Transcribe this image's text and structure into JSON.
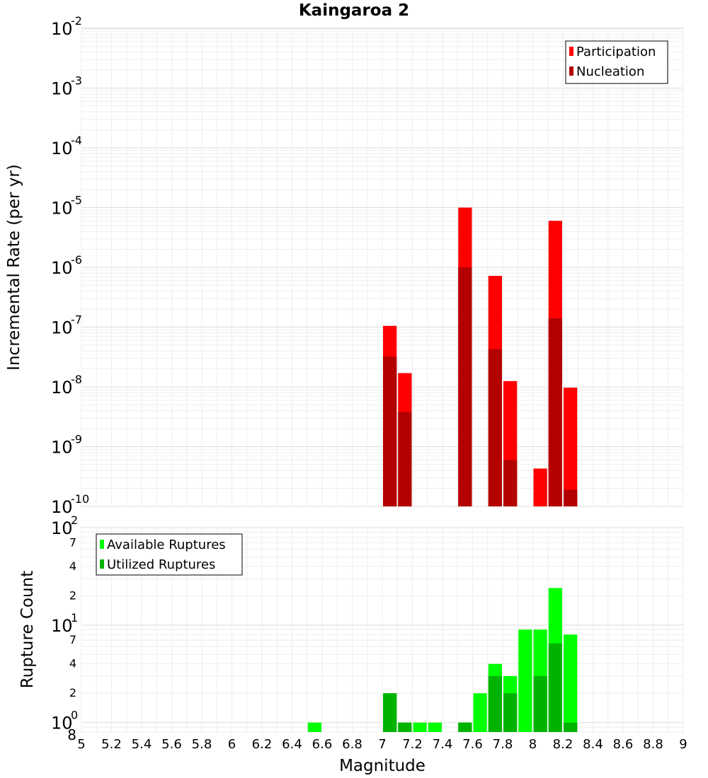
{
  "chart_data": {
    "type": "bar",
    "title": "Kaingaroa 2",
    "x_axis": {
      "label": "Magnitude",
      "range": [
        5,
        9
      ],
      "ticks": [
        "5",
        "5.2",
        "5.4",
        "5.6",
        "5.8",
        "6",
        "6.2",
        "6.4",
        "6.6",
        "6.8",
        "7",
        "7.2",
        "7.4",
        "7.6",
        "7.8",
        "8",
        "8.2",
        "8.4",
        "8.6",
        "8.8",
        "9"
      ]
    },
    "bin_width": 0.1,
    "top_panel": {
      "ylabel": "Incremental Rate (per yr)",
      "yscale": "log",
      "ylim": [
        1e-10,
        0.01
      ],
      "y_tick_labels": [
        {
          "base": "10",
          "exp": "-2"
        },
        {
          "base": "10",
          "exp": "-3"
        },
        {
          "base": "10",
          "exp": "-4"
        },
        {
          "base": "10",
          "exp": "-5"
        },
        {
          "base": "10",
          "exp": "-6"
        },
        {
          "base": "10",
          "exp": "-7"
        },
        {
          "base": "10",
          "exp": "-8"
        },
        {
          "base": "10",
          "exp": "-9"
        },
        {
          "base": "10",
          "exp": "-10"
        }
      ],
      "legend": {
        "position": "top-right",
        "entries": [
          "Participation",
          "Nucleation"
        ]
      },
      "series": [
        {
          "name": "Participation",
          "color": "#ff0000",
          "points": [
            [
              7.05,
              1.05e-07
            ],
            [
              7.15,
              1.7e-08
            ],
            [
              7.55,
              1e-05
            ],
            [
              7.75,
              7.2e-07
            ],
            [
              7.85,
              1.25e-08
            ],
            [
              8.05,
              4.3e-10
            ],
            [
              8.15,
              6e-06
            ],
            [
              8.25,
              9.7e-09
            ]
          ]
        },
        {
          "name": "Nucleation",
          "color": "#b30000",
          "points": [
            [
              7.05,
              3.2e-08
            ],
            [
              7.15,
              3.8e-09
            ],
            [
              7.55,
              1e-06
            ],
            [
              7.75,
              4.3e-08
            ],
            [
              7.85,
              6e-10
            ],
            [
              8.15,
              1.4e-07
            ],
            [
              8.25,
              1.9e-10
            ]
          ]
        }
      ]
    },
    "bottom_panel": {
      "ylabel": "Rupture Count",
      "yscale": "log",
      "ylim": [
        0.8,
        100
      ],
      "y_tick_labels": [
        {
          "value": 0.8,
          "text": "8"
        },
        {
          "value": 1,
          "text": "10",
          "exp": "0"
        },
        {
          "value": 2,
          "text": "2"
        },
        {
          "value": 4,
          "text": "4"
        },
        {
          "value": 7,
          "text": "7"
        },
        {
          "value": 10,
          "text": "10",
          "exp": "1"
        },
        {
          "value": 20,
          "text": "2"
        },
        {
          "value": 40,
          "text": "4"
        },
        {
          "value": 70,
          "text": "7"
        },
        {
          "value": 100,
          "text": "10",
          "exp": "2"
        }
      ],
      "legend": {
        "position": "top-left",
        "entries": [
          "Available Ruptures",
          "Utilized Ruptures"
        ]
      },
      "series": [
        {
          "name": "Available Ruptures",
          "color": "#00ff00",
          "points": [
            [
              6.55,
              1
            ],
            [
              7.05,
              2
            ],
            [
              7.15,
              1
            ],
            [
              7.25,
              1
            ],
            [
              7.35,
              1
            ],
            [
              7.55,
              1
            ],
            [
              7.65,
              2
            ],
            [
              7.75,
              4
            ],
            [
              7.85,
              3
            ],
            [
              7.95,
              9
            ],
            [
              8.05,
              9
            ],
            [
              8.15,
              24
            ],
            [
              8.25,
              8
            ]
          ]
        },
        {
          "name": "Utilized Ruptures",
          "color": "#00b300",
          "points": [
            [
              7.05,
              2
            ],
            [
              7.15,
              1
            ],
            [
              7.55,
              1
            ],
            [
              7.75,
              3
            ],
            [
              7.85,
              2
            ],
            [
              8.05,
              3
            ],
            [
              8.15,
              6.5
            ],
            [
              8.25,
              1
            ]
          ]
        }
      ]
    }
  }
}
